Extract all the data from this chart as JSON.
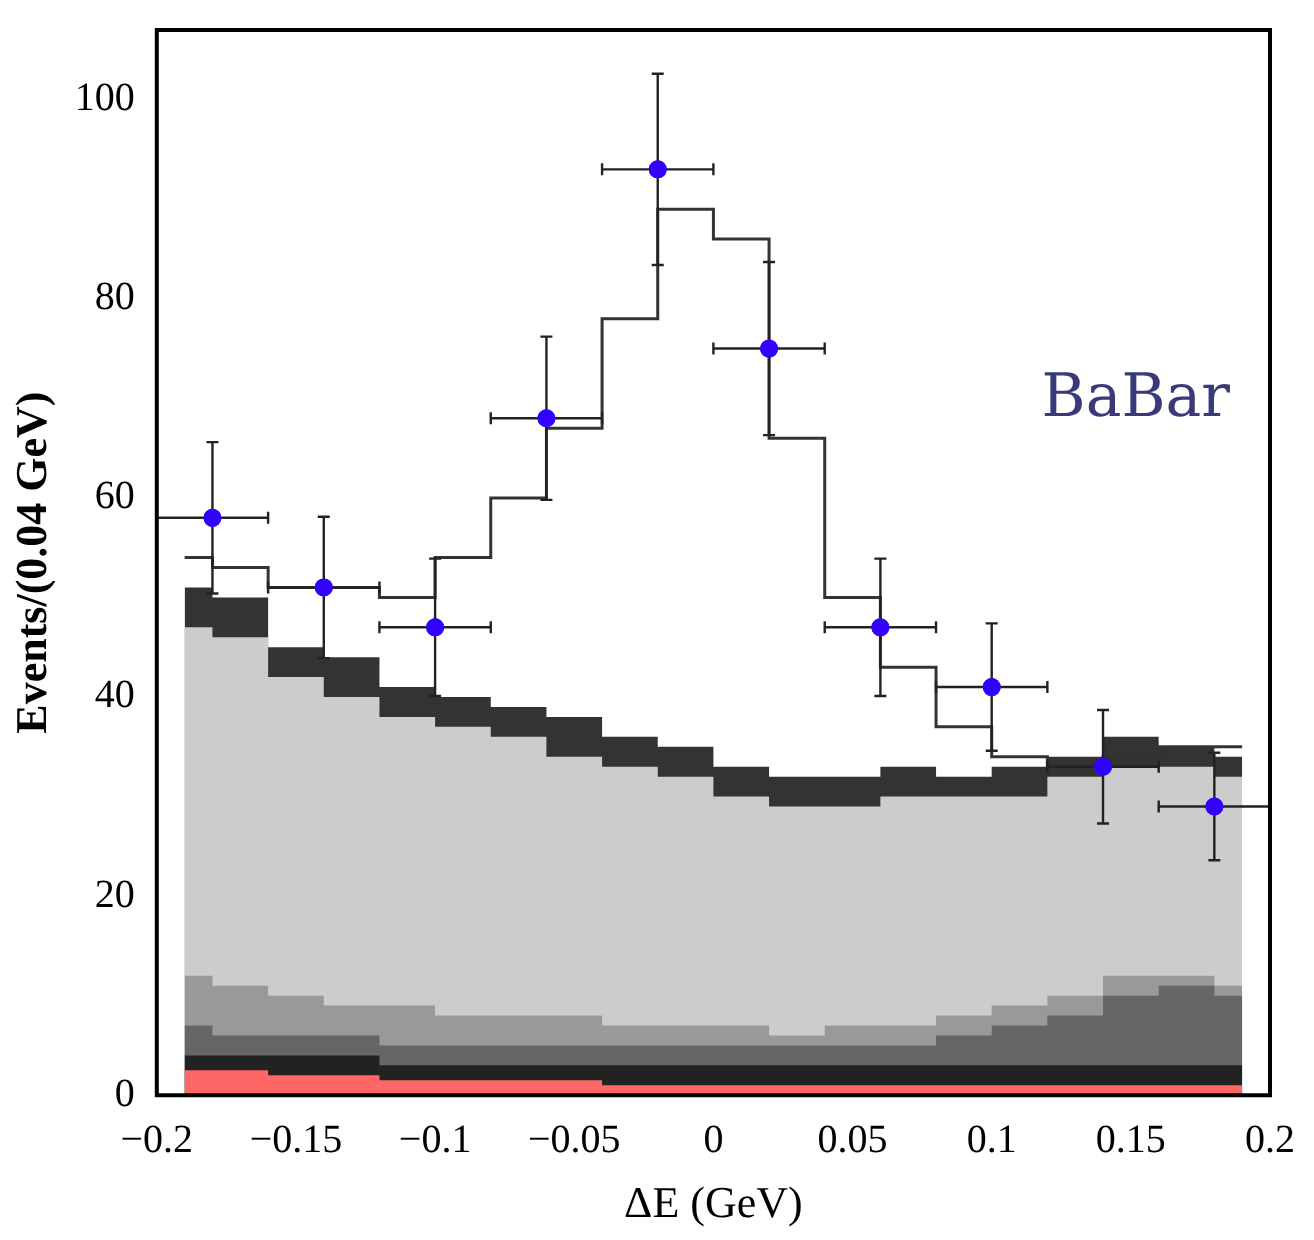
{
  "chart_data": {
    "type": "scatter",
    "xlabel": "ΔE (GeV)",
    "ylabel": "Events/(0.04 GeV)",
    "annotations": [
      "BaBar"
    ],
    "xlim": [
      -0.2,
      0.2
    ],
    "xticks": [
      {
        "value": -0.2,
        "label": "−0.2"
      },
      {
        "value": -0.15,
        "label": "−0.15"
      },
      {
        "value": -0.1,
        "label": "−0.1"
      },
      {
        "value": -0.05,
        "label": "−0.05"
      },
      0,
      0.05,
      0.1,
      0.15,
      0.2
    ],
    "ylim": [
      0,
      107
    ],
    "yticks": [
      0,
      20,
      40,
      60,
      80,
      100
    ],
    "grid": false,
    "legend": false,
    "series": [
      {
        "type": "area",
        "color": "#333333",
        "x": [
          -0.19,
          -0.17,
          -0.15,
          -0.13,
          -0.11,
          -0.09,
          -0.07,
          -0.05,
          -0.03,
          -0.01,
          0.01,
          0.03,
          0.05,
          0.07,
          0.09,
          0.11,
          0.13,
          0.15,
          0.17,
          0.19
        ],
        "values": [
          51,
          50,
          45,
          44,
          41,
          40,
          39,
          38,
          36,
          35,
          33,
          32,
          32,
          33,
          32,
          33,
          34,
          36,
          35,
          34
        ]
      },
      {
        "type": "area",
        "color": "#cccccc",
        "x": [
          -0.19,
          -0.17,
          -0.15,
          -0.13,
          -0.11,
          -0.09,
          -0.07,
          -0.05,
          -0.03,
          -0.01,
          0.01,
          0.03,
          0.05,
          0.07,
          0.09,
          0.11,
          0.13,
          0.15,
          0.17,
          0.19
        ],
        "values": [
          47,
          46,
          42,
          40,
          38,
          37,
          36,
          34,
          33,
          32,
          30,
          29,
          29,
          30,
          30,
          30,
          32,
          33,
          33,
          32
        ]
      },
      {
        "type": "area",
        "color": "#999999",
        "x": [
          -0.19,
          -0.17,
          -0.15,
          -0.13,
          -0.11,
          -0.09,
          -0.07,
          -0.05,
          -0.03,
          -0.01,
          0.01,
          0.03,
          0.05,
          0.07,
          0.09,
          0.11,
          0.13,
          0.15,
          0.17,
          0.19
        ],
        "values": [
          12,
          11,
          10,
          9,
          9,
          8,
          8,
          8,
          7,
          7,
          7,
          6,
          7,
          7,
          8,
          9,
          10,
          12,
          12,
          11
        ]
      },
      {
        "type": "area",
        "color": "#666666",
        "x": [
          -0.19,
          -0.17,
          -0.15,
          -0.13,
          -0.11,
          -0.09,
          -0.07,
          -0.05,
          -0.03,
          -0.01,
          0.01,
          0.03,
          0.05,
          0.07,
          0.09,
          0.11,
          0.13,
          0.15,
          0.17,
          0.19
        ],
        "values": [
          7,
          6,
          6,
          6,
          5,
          5,
          5,
          5,
          5,
          5,
          5,
          5,
          5,
          5,
          6,
          7,
          8,
          10,
          11,
          10
        ]
      },
      {
        "type": "area",
        "color": "#222222",
        "x": [
          -0.19,
          -0.17,
          -0.15,
          -0.13,
          -0.11,
          -0.09,
          -0.07,
          -0.05,
          -0.03,
          -0.01,
          0.01,
          0.03,
          0.05,
          0.07,
          0.09,
          0.11,
          0.13,
          0.15,
          0.17,
          0.19
        ],
        "values": [
          4,
          4,
          4,
          4,
          3,
          3,
          3,
          3,
          3,
          3,
          3,
          3,
          3,
          3,
          3,
          3,
          3,
          3,
          3,
          3
        ]
      },
      {
        "type": "area",
        "color": "#ff6666",
        "x": [
          -0.19,
          -0.17,
          -0.15,
          -0.13,
          -0.11,
          -0.09,
          -0.07,
          -0.05,
          -0.03,
          -0.01,
          0.01,
          0.03,
          0.05,
          0.07,
          0.09,
          0.11,
          0.13,
          0.15,
          0.17,
          0.19
        ],
        "values": [
          2.5,
          2.5,
          2,
          2,
          1.5,
          1.5,
          1.5,
          1.5,
          1,
          1,
          1,
          1,
          1,
          1,
          1,
          1,
          1,
          1,
          1,
          1
        ]
      },
      {
        "type": "step",
        "color": "#333333",
        "x": [
          -0.19,
          -0.17,
          -0.15,
          -0.13,
          -0.11,
          -0.09,
          -0.07,
          -0.05,
          -0.03,
          -0.01,
          0.01,
          0.03,
          0.05,
          0.07,
          0.09,
          0.11,
          0.13,
          0.15,
          0.17,
          0.19
        ],
        "values": [
          54,
          53,
          51,
          51,
          50,
          54,
          60,
          67,
          78,
          89,
          86,
          66,
          50,
          43,
          37,
          34,
          33,
          34,
          35,
          35
        ]
      },
      {
        "marker": "circle",
        "color": "#3300ff",
        "x": [
          -0.18,
          -0.14,
          -0.1,
          -0.06,
          -0.02,
          0.02,
          0.06,
          0.1,
          0.14,
          0.18
        ],
        "values": [
          58,
          51,
          47,
          68,
          93,
          75,
          47,
          41,
          33,
          29
        ],
        "errors": [
          7.6,
          7.1,
          6.9,
          8.2,
          9.6,
          8.7,
          6.9,
          6.4,
          5.7,
          5.4
        ],
        "xerrors": [
          0.02,
          0.02,
          0.02,
          0.02,
          0.02,
          0.02,
          0.02,
          0.02,
          0.02,
          0.02
        ]
      }
    ]
  }
}
